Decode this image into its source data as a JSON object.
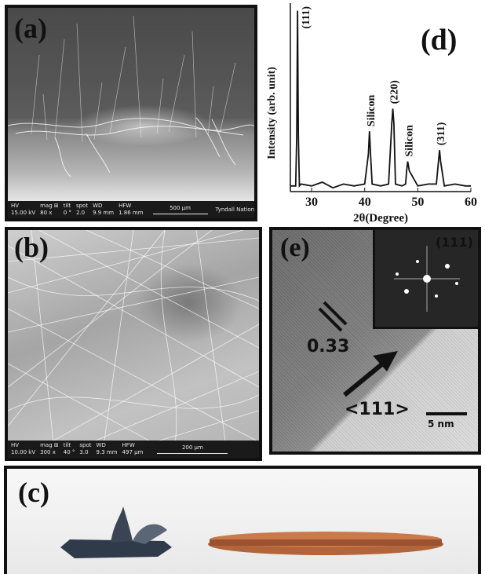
{
  "panels": {
    "a": {
      "label": "(a)",
      "info_bar": {
        "columns": [
          {
            "key": "HV",
            "value": "15.00 kV"
          },
          {
            "key": "mag ⊞",
            "value": "80 x"
          },
          {
            "key": "tilt",
            "value": "0 °"
          },
          {
            "key": "spot",
            "value": "2.0"
          },
          {
            "key": "WD",
            "value": "9.9 mm"
          },
          {
            "key": "HFW",
            "value": "1.86 mm"
          }
        ],
        "scale_label": "500 µm",
        "institution": "Tyndall National Institute"
      }
    },
    "b": {
      "label": "(b)",
      "info_bar": {
        "columns": [
          {
            "key": "HV",
            "value": "10.00 kV"
          },
          {
            "key": "mag ⊞",
            "value": "300 x"
          },
          {
            "key": "tilt",
            "value": "40 °"
          },
          {
            "key": "spot",
            "value": "3.0"
          },
          {
            "key": "WD",
            "value": "9.3 mm"
          },
          {
            "key": "HFW",
            "value": "497 µm"
          }
        ],
        "scale_label": "200 µm"
      }
    },
    "c": {
      "label": "(c)"
    },
    "d": {
      "label": "(d)"
    },
    "e": {
      "label": "(e)",
      "inset_label": "(111)",
      "d_spacing": "0.33",
      "direction": "<111>",
      "scale_bar": "5 nm"
    }
  },
  "chart_data": {
    "type": "line",
    "xlabel": "2θ(Degree)",
    "ylabel": "Intensity (arb. unit)",
    "xlim": [
      26,
      60
    ],
    "xticks": [
      30,
      40,
      50,
      60
    ],
    "ylim": [
      0,
      100
    ],
    "series": [
      {
        "x": [
          26,
          27,
          27.2,
          27.35,
          27.5,
          27.7,
          28,
          30,
          32,
          34,
          36,
          38,
          40,
          40.7,
          40.9,
          41.1,
          41.4,
          43,
          44.5,
          45.1,
          45.3,
          45.5,
          45.8,
          47,
          47.7,
          47.9,
          48.1,
          48.4,
          50,
          52,
          53.5,
          53.9,
          54.1,
          54.3,
          55,
          57,
          59,
          60
        ],
        "y": [
          3,
          3,
          30,
          96,
          30,
          3,
          4,
          3,
          5,
          2,
          4,
          3,
          4,
          20,
          32,
          20,
          4,
          3,
          4,
          36,
          44,
          36,
          4,
          3,
          4,
          11,
          16,
          11,
          3,
          4,
          4,
          16,
          22,
          16,
          3,
          4,
          3,
          3
        ]
      }
    ],
    "annotations": [
      {
        "text": "(111)",
        "x": 27.35
      },
      {
        "text": "Silicon",
        "x": 40.9
      },
      {
        "text": "(220)",
        "x": 45.3
      },
      {
        "text": "Silicon",
        "x": 48.1
      },
      {
        "text": "(311)",
        "x": 54.1
      }
    ],
    "colors": {
      "line": "#111111"
    }
  }
}
